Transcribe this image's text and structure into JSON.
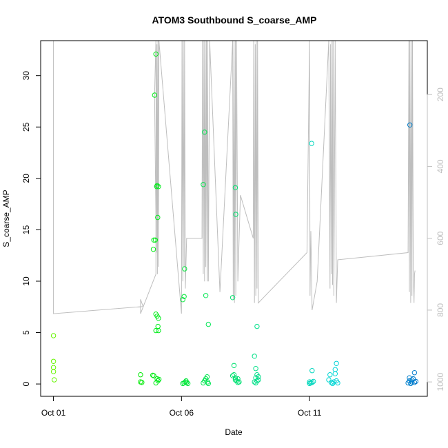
{
  "chart_data": {
    "type": "scatter",
    "title": "ATOM3 Southbound S_coarse_AMP",
    "xlabel": "Date",
    "ylabel": "S_coarse_AMP",
    "x_tick_labels": [
      "Oct 01",
      "Oct 06",
      "Oct 11"
    ],
    "x_tick_days": [
      1,
      6,
      11
    ],
    "xlim": [
      0.5,
      15.6
    ],
    "ylim": [
      -1.2,
      33.4
    ],
    "y_ticks": [
      0,
      5,
      10,
      15,
      20,
      25,
      30
    ],
    "y_tick_labels": [
      "0",
      "5",
      "10",
      "15",
      "20",
      "25",
      "30"
    ],
    "right_axis": {
      "ticks": [
        200,
        400,
        600,
        800,
        1000
      ],
      "tick_labels": [
        "200",
        "400",
        "600",
        "800",
        "1000"
      ],
      "lim_top": 50,
      "lim_bottom": 1040,
      "reversed": true,
      "color": "#bfbfbf"
    },
    "grid": false,
    "legend": "none",
    "point_style": "open-circle",
    "color_scale": "hue by date: green to blue",
    "points": [
      [
        1.0,
        4.7
      ],
      [
        1.0,
        2.2
      ],
      [
        1.0,
        1.6
      ],
      [
        1.0,
        1.2
      ],
      [
        1.03,
        0.4
      ],
      [
        4.4,
        0.9
      ],
      [
        4.4,
        0.2
      ],
      [
        4.45,
        0.15
      ],
      [
        4.9,
        13.1
      ],
      [
        4.92,
        14.0
      ],
      [
        4.95,
        28.1
      ],
      [
        4.98,
        14.0
      ],
      [
        5.0,
        32.1
      ],
      [
        5.0,
        6.8
      ],
      [
        5.0,
        5.2
      ],
      [
        5.03,
        19.2
      ],
      [
        5.05,
        6.6
      ],
      [
        5.05,
        19.3
      ],
      [
        5.07,
        16.2
      ],
      [
        5.08,
        5.6
      ],
      [
        5.1,
        6.4
      ],
      [
        5.1,
        19.2
      ],
      [
        5.1,
        5.2
      ],
      [
        4.88,
        0.85
      ],
      [
        4.92,
        0.8
      ],
      [
        5.0,
        0.1
      ],
      [
        5.05,
        0.5
      ],
      [
        5.08,
        0.3
      ],
      [
        5.12,
        0.45
      ],
      [
        6.05,
        8.2
      ],
      [
        6.1,
        8.5
      ],
      [
        6.05,
        0.05
      ],
      [
        6.1,
        0.1
      ],
      [
        6.15,
        0.2
      ],
      [
        6.2,
        0.15
      ],
      [
        6.25,
        0.05
      ],
      [
        6.18,
        0.3
      ],
      [
        6.12,
        11.2
      ],
      [
        6.85,
        19.4
      ],
      [
        6.9,
        24.5
      ],
      [
        6.95,
        8.6
      ],
      [
        7.05,
        5.8
      ],
      [
        6.85,
        0.1
      ],
      [
        6.9,
        0.3
      ],
      [
        6.95,
        0.5
      ],
      [
        7.0,
        0.7
      ],
      [
        7.02,
        0.2
      ],
      [
        7.05,
        0.05
      ],
      [
        8.0,
        8.4
      ],
      [
        8.05,
        1.8
      ],
      [
        8.05,
        0.9
      ],
      [
        8.1,
        0.6
      ],
      [
        8.1,
        0.4
      ],
      [
        8.15,
        0.3
      ],
      [
        8.2,
        0.15
      ],
      [
        8.0,
        0.8
      ],
      [
        8.12,
        16.5
      ],
      [
        8.1,
        19.1
      ],
      [
        8.2,
        0.5
      ],
      [
        8.25,
        0.2
      ],
      [
        8.85,
        2.7
      ],
      [
        8.9,
        1.5
      ],
      [
        8.95,
        5.6
      ],
      [
        8.9,
        0.6
      ],
      [
        8.95,
        0.9
      ],
      [
        9.0,
        0.4
      ],
      [
        8.85,
        0.2
      ],
      [
        8.9,
        0.1
      ],
      [
        8.95,
        0.3
      ],
      [
        9.0,
        0.7
      ],
      [
        11.0,
        0.2
      ],
      [
        11.05,
        0.1
      ],
      [
        11.1,
        0.15
      ],
      [
        11.15,
        0.25
      ],
      [
        11.1,
        1.3
      ],
      [
        11.08,
        23.4
      ],
      [
        11.0,
        0.05
      ],
      [
        11.75,
        0.4
      ],
      [
        11.8,
        0.9
      ],
      [
        11.85,
        0.15
      ],
      [
        11.9,
        0.05
      ],
      [
        11.95,
        0.2
      ],
      [
        12.0,
        1.4
      ],
      [
        12.0,
        1.0
      ],
      [
        12.05,
        2.0
      ],
      [
        12.05,
        0.3
      ],
      [
        12.1,
        0.1
      ],
      [
        14.85,
        0.1
      ],
      [
        14.9,
        0.3
      ],
      [
        14.95,
        0.05
      ],
      [
        15.0,
        0.2
      ],
      [
        15.05,
        0.5
      ],
      [
        15.1,
        0.15
      ],
      [
        15.15,
        0.25
      ],
      [
        14.92,
        25.2
      ],
      [
        15.1,
        1.1
      ],
      [
        15.0,
        0.4
      ],
      [
        14.9,
        0.6
      ]
    ],
    "secondary_line": {
      "name": "",
      "color": "#bebebe",
      "points": [
        [
          1.0,
          50
        ],
        [
          1.0,
          810
        ],
        [
          4.5,
          790
        ],
        [
          4.4,
          770
        ],
        [
          4.4,
          810
        ],
        [
          5.0,
          700
        ],
        [
          5.0,
          540
        ],
        [
          4.95,
          200
        ],
        [
          5.0,
          50
        ],
        [
          5.02,
          640
        ],
        [
          5.04,
          60
        ],
        [
          5.06,
          700
        ],
        [
          5.08,
          50
        ],
        [
          5.1,
          680
        ],
        [
          5.12,
          50
        ],
        [
          6.0,
          810
        ],
        [
          6.02,
          50
        ],
        [
          6.05,
          720
        ],
        [
          6.07,
          50
        ],
        [
          6.1,
          680
        ],
        [
          6.12,
          50
        ],
        [
          6.15,
          740
        ],
        [
          6.2,
          600
        ],
        [
          6.8,
          600
        ],
        [
          6.82,
          50
        ],
        [
          6.85,
          700
        ],
        [
          6.88,
          50
        ],
        [
          6.9,
          720
        ],
        [
          6.92,
          50
        ],
        [
          6.95,
          680
        ],
        [
          6.97,
          50
        ],
        [
          7.0,
          720
        ],
        [
          7.02,
          50
        ],
        [
          7.05,
          720
        ],
        [
          7.1,
          50
        ],
        [
          7.5,
          750
        ],
        [
          8.0,
          50
        ],
        [
          8.02,
          770
        ],
        [
          8.05,
          50
        ],
        [
          8.07,
          780
        ],
        [
          8.1,
          50
        ],
        [
          8.12,
          760
        ],
        [
          8.15,
          50
        ],
        [
          8.2,
          720
        ],
        [
          8.3,
          480
        ],
        [
          8.8,
          600
        ],
        [
          8.82,
          50
        ],
        [
          8.85,
          780
        ],
        [
          8.88,
          60
        ],
        [
          8.9,
          760
        ],
        [
          8.92,
          50
        ],
        [
          8.95,
          740
        ],
        [
          8.97,
          50
        ],
        [
          9.0,
          780
        ],
        [
          10.9,
          640
        ],
        [
          11.0,
          50
        ],
        [
          11.02,
          760
        ],
        [
          11.05,
          580
        ],
        [
          11.08,
          700
        ],
        [
          11.1,
          800
        ],
        [
          11.3,
          720
        ],
        [
          11.75,
          50
        ],
        [
          11.8,
          740
        ],
        [
          11.82,
          60
        ],
        [
          11.85,
          700
        ],
        [
          11.88,
          50
        ],
        [
          11.9,
          730
        ],
        [
          11.92,
          50
        ],
        [
          11.95,
          760
        ],
        [
          12.0,
          50
        ],
        [
          12.05,
          780
        ],
        [
          12.1,
          660
        ],
        [
          14.85,
          640
        ],
        [
          14.88,
          50
        ],
        [
          14.9,
          750
        ],
        [
          14.92,
          50
        ],
        [
          14.95,
          780
        ],
        [
          14.97,
          50
        ],
        [
          15.0,
          760
        ],
        [
          15.02,
          50
        ],
        [
          15.05,
          690
        ],
        [
          15.08,
          780
        ],
        [
          15.1,
          700
        ],
        [
          15.12,
          690
        ]
      ]
    }
  }
}
